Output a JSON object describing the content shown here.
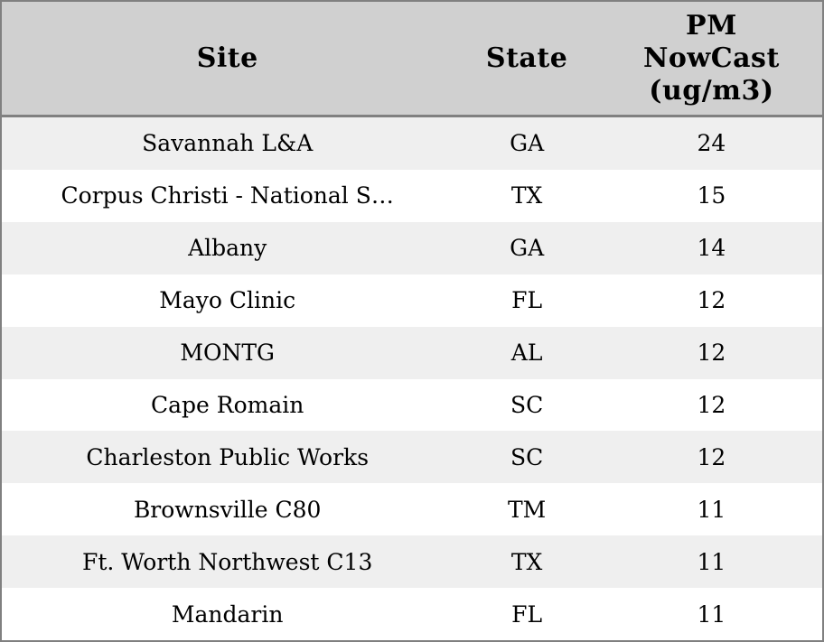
{
  "chart_data": {
    "type": "table",
    "columns": [
      "Site",
      "State",
      "PM NowCast (ug/m3)"
    ],
    "header": {
      "site": "Site",
      "state": "State",
      "pm_label": "PM NowCast (ug/m3)",
      "pm_lines": [
        "PM",
        "NowCast",
        "(ug/m3)"
      ]
    },
    "rows": [
      {
        "site": "Savannah L&A",
        "state": "GA",
        "pm_nowcast": 24
      },
      {
        "site": "Corpus Christi - National S…",
        "state": "TX",
        "pm_nowcast": 15
      },
      {
        "site": "Albany",
        "state": "GA",
        "pm_nowcast": 14
      },
      {
        "site": "Mayo Clinic",
        "state": "FL",
        "pm_nowcast": 12
      },
      {
        "site": "MONTG",
        "state": "AL",
        "pm_nowcast": 12
      },
      {
        "site": "Cape Romain",
        "state": "SC",
        "pm_nowcast": 12
      },
      {
        "site": "Charleston Public Works",
        "state": "SC",
        "pm_nowcast": 12
      },
      {
        "site": "Brownsville C80",
        "state": "TM",
        "pm_nowcast": 11
      },
      {
        "site": "Ft. Worth Northwest C13",
        "state": "TX",
        "pm_nowcast": 11
      },
      {
        "site": "Mandarin",
        "state": "FL",
        "pm_nowcast": 11
      }
    ]
  },
  "colors": {
    "border": "#808080",
    "header_bg": "#d0d0d0",
    "row_stripe_bg": "#efefef",
    "row_bg": "#ffffff",
    "text": "#000000"
  }
}
